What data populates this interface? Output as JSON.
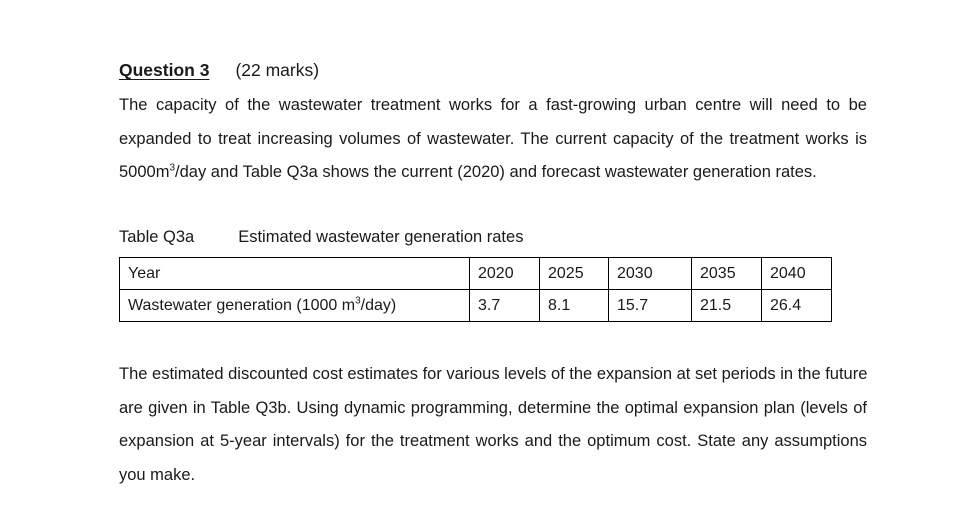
{
  "question": {
    "title": "Question 3",
    "marks": "(22 marks)"
  },
  "intro": {
    "line1": "The capacity of the wastewater treatment works for a fast-growing urban centre will need to be",
    "line2": "expanded to treat increasing volumes of wastewater. The current capacity of the treatment works is",
    "line3_capacity": "5000m",
    "line3_exp": "3",
    "line3_rest": "/day and Table Q3a shows the current (2020) and forecast wastewater generation rates."
  },
  "table_q3a": {
    "label": "Table Q3a",
    "caption": "Estimated wastewater generation rates",
    "header_label": "Year",
    "years": [
      "2020",
      "2025",
      "2030",
      "2035",
      "2040"
    ],
    "row_label_pre": "Wastewater generation (1000 m",
    "row_label_exp": "3",
    "row_label_post": "/day)",
    "values": [
      "3.7",
      "8.1",
      "15.7",
      "21.5",
      "26.4"
    ]
  },
  "followup": {
    "line1": "The estimated discounted cost estimates for various levels of the expansion at set periods in the future",
    "line2": "are given in Table Q3b. Using dynamic programming, determine the optimal expansion plan (levels of",
    "line3": "expansion at 5-year intervals) for the treatment works and the optimum cost.  State any assumptions",
    "line4": "you make."
  }
}
